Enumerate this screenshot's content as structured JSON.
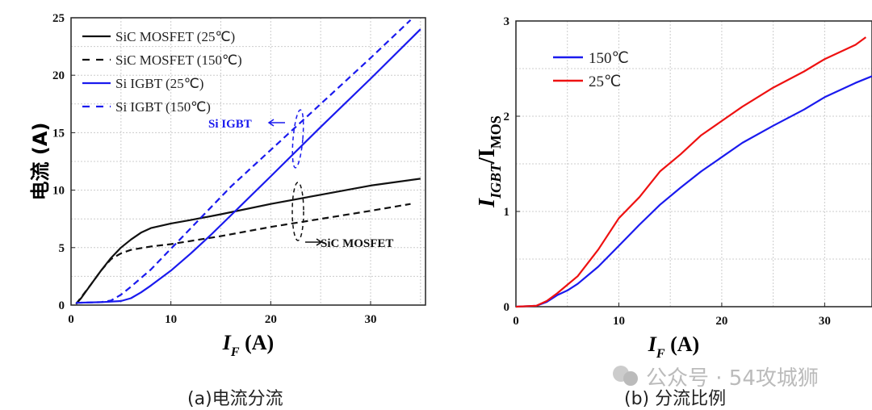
{
  "chart_data": [
    {
      "type": "line",
      "xlabel": "I_F (A)",
      "ylabel": "电流 (A)",
      "xlim": [
        0,
        35.5
      ],
      "ylim": [
        0,
        25
      ],
      "xticks": [
        "0",
        "10",
        "20",
        "30"
      ],
      "yticks": [
        "0",
        "5",
        "10",
        "15",
        "20",
        "25"
      ],
      "grid": true,
      "legend": "top-left",
      "series": [
        {
          "name": "SiC MOSFET (25℃)",
          "color": "#111111",
          "style": "solid",
          "x": [
            0.5,
            1,
            2,
            3,
            4,
            5,
            6,
            7,
            8,
            10,
            12,
            15,
            20,
            25,
            30,
            35
          ],
          "y": [
            0.1,
            0.6,
            1.8,
            3,
            4.1,
            5,
            5.7,
            6.3,
            6.7,
            7.1,
            7.4,
            7.9,
            8.8,
            9.6,
            10.4,
            11
          ]
        },
        {
          "name": "SiC MOSFET (150℃)",
          "color": "#111111",
          "style": "dashed",
          "x": [
            0.5,
            2,
            3,
            4,
            5,
            6,
            8,
            10,
            15,
            20,
            25,
            30,
            34
          ],
          "y": [
            0.1,
            1.8,
            3,
            4,
            4.5,
            4.8,
            5.1,
            5.3,
            6,
            6.8,
            7.5,
            8.2,
            8.8
          ]
        },
        {
          "name": "Si IGBT (25℃)",
          "color": "#1a1aee",
          "style": "solid",
          "x": [
            0.5,
            3,
            5,
            6,
            7,
            8,
            10,
            12,
            14,
            16,
            20,
            25,
            30,
            35
          ],
          "y": [
            0.2,
            0.25,
            0.35,
            0.6,
            1.1,
            1.7,
            3,
            4.5,
            6.1,
            7.8,
            11.2,
            15.5,
            19.7,
            24
          ]
        },
        {
          "name": "Si IGBT (150℃)",
          "color": "#1a1aee",
          "style": "dashed",
          "x": [
            0.5,
            3,
            4,
            5,
            6,
            8,
            10,
            13,
            16,
            20,
            25,
            30,
            34
          ],
          "y": [
            0.2,
            0.25,
            0.4,
            0.9,
            1.6,
            3.1,
            4.9,
            7.6,
            10.3,
            13.5,
            17.5,
            21.5,
            24.8
          ]
        }
      ],
      "annotations": [
        {
          "text": "Si IGBT",
          "color": "#1a1aee"
        },
        {
          "text": "SiC MOSFET",
          "color": "#111111"
        }
      ],
      "caption": "(a)电流分流"
    },
    {
      "type": "line",
      "xlabel": "I_F (A)",
      "ylabel": "I_IGBT/I_MOS",
      "xlim": [
        0,
        34.6
      ],
      "ylim": [
        0,
        3
      ],
      "xticks": [
        "0",
        "10",
        "20",
        "30"
      ],
      "yticks": [
        "0",
        "1",
        "2",
        "3"
      ],
      "grid": true,
      "legend": "top-left",
      "series": [
        {
          "name": "150℃",
          "color": "#1a1aee",
          "x": [
            0,
            2,
            3,
            4,
            5,
            6,
            8,
            10,
            12,
            14,
            16,
            18,
            20,
            22,
            25,
            28,
            30,
            33,
            34.6
          ],
          "y": [
            0,
            0.01,
            0.05,
            0.12,
            0.17,
            0.24,
            0.42,
            0.64,
            0.86,
            1.07,
            1.25,
            1.42,
            1.57,
            1.72,
            1.9,
            2.07,
            2.2,
            2.35,
            2.42
          ]
        },
        {
          "name": "25℃",
          "color": "#ee1111",
          "x": [
            0,
            2,
            3,
            4,
            5,
            6,
            8,
            10,
            12,
            14,
            16,
            18,
            20,
            22,
            25,
            28,
            30,
            33,
            34
          ],
          "y": [
            0,
            0.01,
            0.06,
            0.14,
            0.23,
            0.32,
            0.6,
            0.93,
            1.15,
            1.42,
            1.6,
            1.8,
            1.95,
            2.1,
            2.3,
            2.47,
            2.6,
            2.75,
            2.83
          ]
        }
      ],
      "caption": "(b)  分流比例"
    }
  ],
  "watermark": "公众号 · 54攻城狮"
}
